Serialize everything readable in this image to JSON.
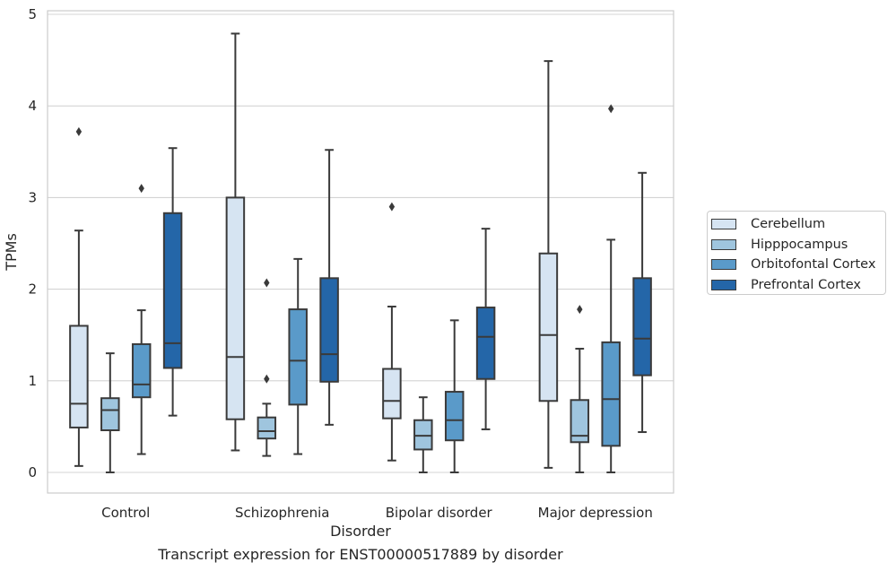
{
  "chart_data": {
    "type": "boxplot",
    "title": "Transcript expression for ENST00000517889 by disorder",
    "xlabel": "Disorder",
    "ylabel": "TPMs",
    "ylim": [
      -0.22,
      5.05
    ],
    "yticks": [
      "0",
      "1",
      "2",
      "3",
      "4",
      "5"
    ],
    "grid": true,
    "legend_position": "right-center",
    "categories": [
      "Control",
      "Schizophrenia",
      "Bipolar disorder",
      "Major depression"
    ],
    "series": [
      {
        "name": "Cerebellum",
        "color": "#d6e4f2",
        "boxes": [
          {
            "whislo": 0.07,
            "q1": 0.49,
            "med": 0.75,
            "q3": 1.6,
            "whishi": 2.64,
            "fliers": [
              3.72
            ]
          },
          {
            "whislo": 0.24,
            "q1": 0.58,
            "med": 1.26,
            "q3": 3.0,
            "whishi": 4.79,
            "fliers": []
          },
          {
            "whislo": 0.13,
            "q1": 0.59,
            "med": 0.78,
            "q3": 1.13,
            "whishi": 1.81,
            "fliers": [
              2.9
            ]
          },
          {
            "whislo": 0.05,
            "q1": 0.78,
            "med": 1.5,
            "q3": 2.39,
            "whishi": 4.49,
            "fliers": []
          }
        ]
      },
      {
        "name": "Hipppocampus",
        "color": "#9fc5de",
        "boxes": [
          {
            "whislo": 0.0,
            "q1": 0.46,
            "med": 0.68,
            "q3": 0.81,
            "whishi": 1.3,
            "fliers": []
          },
          {
            "whislo": 0.18,
            "q1": 0.37,
            "med": 0.45,
            "q3": 0.6,
            "whishi": 0.75,
            "fliers": [
              1.02,
              2.07
            ]
          },
          {
            "whislo": 0.0,
            "q1": 0.25,
            "med": 0.4,
            "q3": 0.57,
            "whishi": 0.82,
            "fliers": []
          },
          {
            "whislo": 0.0,
            "q1": 0.33,
            "med": 0.4,
            "q3": 0.79,
            "whishi": 1.35,
            "fliers": [
              1.78
            ]
          }
        ]
      },
      {
        "name": "Orbitofontal Cortex",
        "color": "#5a9ac9",
        "boxes": [
          {
            "whislo": 0.2,
            "q1": 0.82,
            "med": 0.96,
            "q3": 1.4,
            "whishi": 1.77,
            "fliers": [
              3.1
            ]
          },
          {
            "whislo": 0.2,
            "q1": 0.74,
            "med": 1.22,
            "q3": 1.78,
            "whishi": 2.33,
            "fliers": []
          },
          {
            "whislo": 0.0,
            "q1": 0.35,
            "med": 0.57,
            "q3": 0.88,
            "whishi": 1.66,
            "fliers": []
          },
          {
            "whislo": 0.0,
            "q1": 0.29,
            "med": 0.8,
            "q3": 1.42,
            "whishi": 2.54,
            "fliers": [
              3.97
            ]
          }
        ]
      },
      {
        "name": "Prefrontal Cortex",
        "color": "#2466a8",
        "boxes": [
          {
            "whislo": 0.62,
            "q1": 1.14,
            "med": 1.41,
            "q3": 2.83,
            "whishi": 3.54,
            "fliers": []
          },
          {
            "whislo": 0.52,
            "q1": 0.99,
            "med": 1.29,
            "q3": 2.12,
            "whishi": 3.52,
            "fliers": []
          },
          {
            "whislo": 0.47,
            "q1": 1.02,
            "med": 1.48,
            "q3": 1.8,
            "whishi": 2.66,
            "fliers": []
          },
          {
            "whislo": 0.44,
            "q1": 1.06,
            "med": 1.46,
            "q3": 2.12,
            "whishi": 3.27,
            "fliers": []
          }
        ]
      }
    ]
  }
}
